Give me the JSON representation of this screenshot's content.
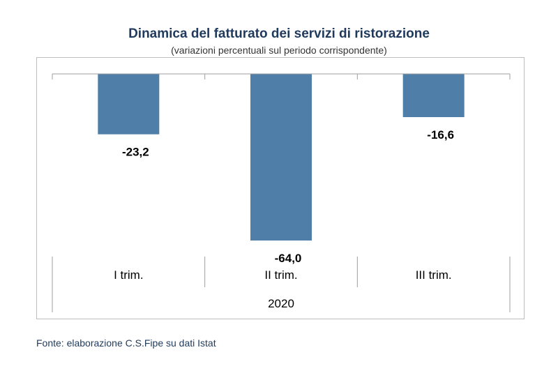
{
  "chart_data": {
    "type": "bar",
    "title": "Dinamica del fatturato dei servizi di ristorazione",
    "subtitle": "(variazioni percentuali sul periodo corrispondente)",
    "categories": [
      "I trim.",
      "II trim.",
      "III trim."
    ],
    "group_label": "2020",
    "values": [
      -23.2,
      -64.0,
      -16.6
    ],
    "value_labels": [
      "-23,2",
      "-64,0",
      "-16,6"
    ],
    "ylim": [
      -64,
      0
    ],
    "grid": false,
    "legend": "none",
    "bar_color": "#4f7fa8",
    "source": "Fonte: elaborazione C.S.Fipe su dati Istat"
  }
}
